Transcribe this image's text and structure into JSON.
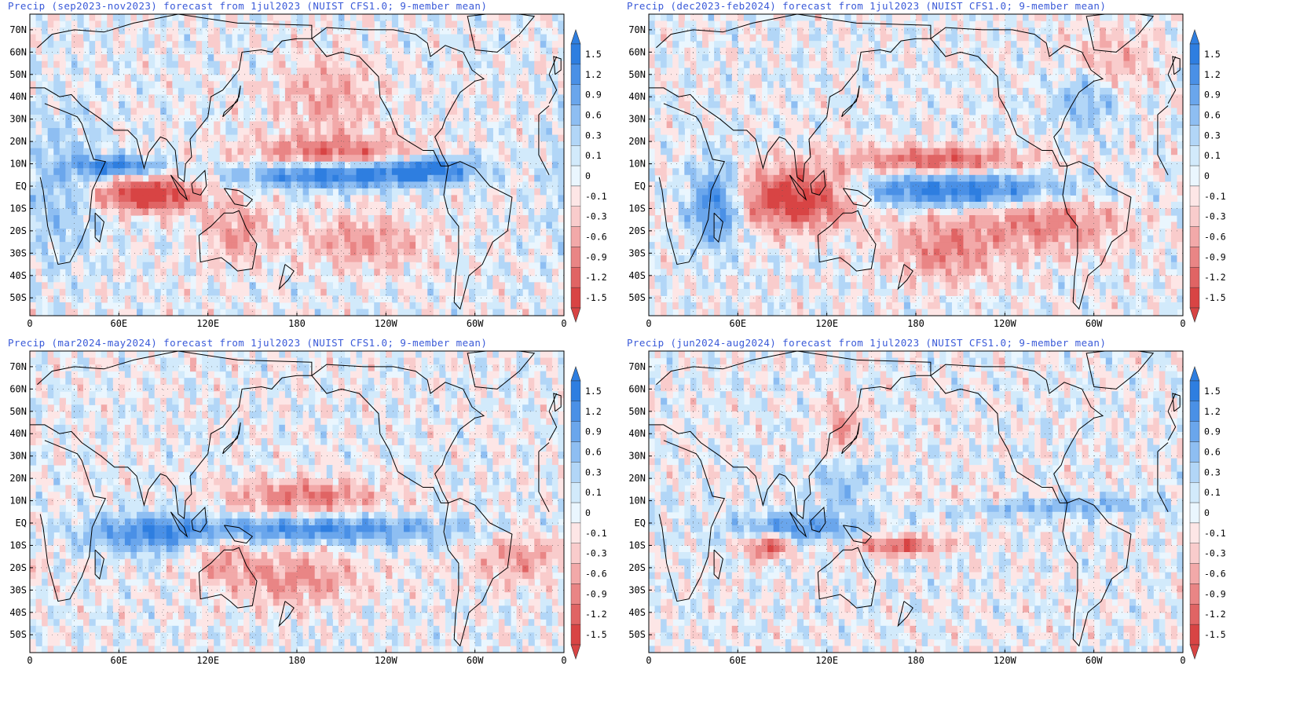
{
  "panels": [
    {
      "id": "p1",
      "title": "Precip (sep2023-nov2023) forecast from 1jul2023 (NUIST CFS1.0; 9-member mean)",
      "period": "sep2023-nov2023",
      "pattern": "elnino-son"
    },
    {
      "id": "p2",
      "title": "Precip (dec2023-feb2024) forecast from 1jul2023 (NUIST CFS1.0; 9-member mean)",
      "period": "dec2023-feb2024",
      "pattern": "elnino-djf"
    },
    {
      "id": "p3",
      "title": "Precip (mar2024-may2024) forecast from 1jul2023 (NUIST CFS1.0; 9-member mean)",
      "period": "mar2024-may2024",
      "pattern": "decay-mam"
    },
    {
      "id": "p4",
      "title": "Precip (jun2024-aug2024) forecast from 1jul2023 (NUIST CFS1.0; 9-member mean)",
      "period": "jun2024-aug2024",
      "pattern": "neutral-jja"
    }
  ],
  "lat_labels": [
    "70N",
    "60N",
    "50N",
    "40N",
    "30N",
    "20N",
    "10N",
    "EQ",
    "10S",
    "20S",
    "30S",
    "40S",
    "50S"
  ],
  "lon_labels": [
    "0",
    "60E",
    "120E",
    "180",
    "120W",
    "60W",
    "0"
  ],
  "colorbar": {
    "labels": [
      "1.5",
      "1.2",
      "0.9",
      "0.6",
      "0.3",
      "0.1",
      "0",
      "-0.1",
      "-0.3",
      "-0.6",
      "-0.9",
      "-1.2",
      "-1.5"
    ],
    "colors": [
      "#2e7ee0",
      "#4a90e6",
      "#6aa6ec",
      "#8ebef2",
      "#b2d6f7",
      "#d2eafb",
      "#eaf6fe",
      "#fde6e6",
      "#f9cccc",
      "#f2a9a9",
      "#e98585",
      "#e06464",
      "#d84444"
    ]
  }
}
